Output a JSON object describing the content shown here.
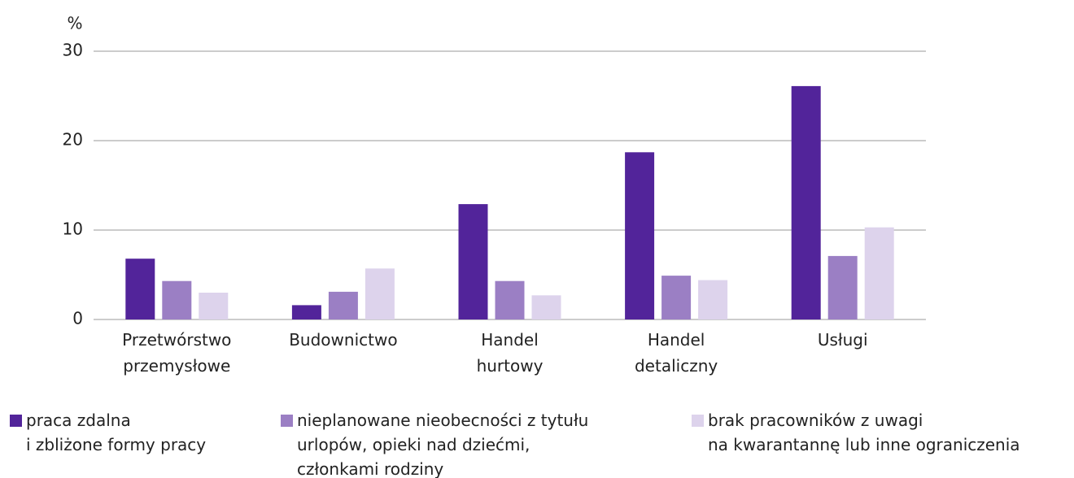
{
  "chart_data": {
    "type": "bar",
    "y_label": "%",
    "categories": [
      "Przetwórstwo\nprzemysłowe",
      "Budownictwo",
      "Handel\nhurtowy",
      "Handel\ndetaliczny",
      "Usługi"
    ],
    "series": [
      {
        "name": "praca zdalna\ni zbliżone formy pracy",
        "color": "#52249a",
        "values": [
          6.8,
          1.6,
          12.9,
          18.7,
          26.1
        ]
      },
      {
        "name": "nieplanowane nieobecności z tytułu\nurlopów, opieki nad dziećmi,\nczłonkami rodziny",
        "color": "#9b7fc4",
        "values": [
          4.3,
          3.1,
          4.3,
          4.9,
          7.1
        ]
      },
      {
        "name": "brak pracowników z uwagi\nna kwarantannę lub inne ograniczenia",
        "color": "#ddd3ec",
        "values": [
          3.0,
          5.7,
          2.7,
          4.4,
          10.3
        ]
      }
    ],
    "ylim": [
      0,
      30
    ],
    "yticks": [
      0,
      10,
      20,
      30
    ],
    "grid": true,
    "legend": "bottom"
  }
}
